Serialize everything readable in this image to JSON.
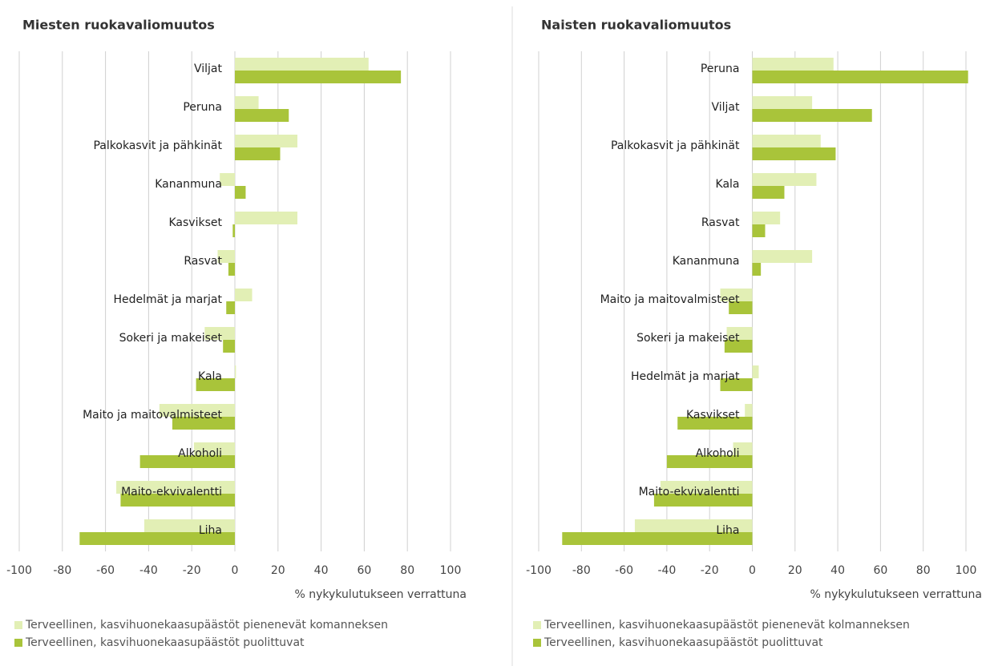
{
  "chart_data": [
    {
      "type": "barh",
      "title": "Miesten ruokavaliomuutos",
      "xlabel": "% nykykulutukseen verrattuna",
      "categories": [
        "Viljat",
        "Peruna",
        "Palkokasvit ja pähkinät",
        "Kananmuna",
        "Kasvikset",
        "Rasvat",
        "Hedelmät ja marjat",
        "Sokeri ja makeiset",
        "Kala",
        "Maito ja maitovalmisteet",
        "Alkoholi",
        "Maito-ekvivalentti",
        "Liha"
      ],
      "series": [
        {
          "name": "Terveellinen, kasvihuonekaasupäästöt pienenevät komanneksen",
          "color": "#e2efb5",
          "values": [
            62,
            11,
            29,
            -7,
            29,
            -8,
            8,
            -14,
            0.5,
            -35,
            -19,
            -55,
            -42
          ]
        },
        {
          "name": "Terveellinen, kasvihuonekaasupäästöt puolittuvat",
          "color": "#a9c43a",
          "values": [
            77,
            25,
            21,
            5,
            -1,
            -3,
            -4,
            -5.5,
            -18,
            -29,
            -44,
            -53,
            -72
          ]
        }
      ],
      "xlim": [
        -100,
        100
      ],
      "xticks": [
        -100,
        -80,
        -60,
        -40,
        -20,
        0,
        20,
        40,
        60,
        80,
        100
      ],
      "grid": true
    },
    {
      "type": "barh",
      "title": "Naisten ruokavaliomuutos",
      "xlabel": "% nykykulutukseen verrattuna",
      "categories": [
        "Peruna",
        "Viljat",
        "Palkokasvit ja pähkinät",
        "Kala",
        "Rasvat",
        "Kananmuna",
        "Maito ja maitovalmisteet",
        "Sokeri ja makeiset",
        "Hedelmät ja marjat",
        "Kasvikset",
        "Alkoholi",
        "Maito-ekvivalentti",
        "Liha"
      ],
      "series": [
        {
          "name": "Terveellinen, kasvihuonekaasupäästöt pienenevät kolmanneksen",
          "color": "#e2efb5",
          "values": [
            38,
            28,
            32,
            30,
            13,
            28,
            -15,
            -12,
            3,
            -3.5,
            -9,
            -43,
            -55
          ]
        },
        {
          "name": "Terveellinen, kasvihuonekaasupäästöt puolittuvat",
          "color": "#a9c43a",
          "values": [
            101,
            56,
            39,
            15,
            6,
            4,
            -11,
            -13,
            -15,
            -35,
            -40,
            -46,
            -89
          ]
        }
      ],
      "xlim": [
        -100,
        100
      ],
      "xticks": [
        -100,
        -80,
        -60,
        -40,
        -20,
        0,
        20,
        40,
        60,
        80,
        100
      ],
      "grid": true
    }
  ]
}
